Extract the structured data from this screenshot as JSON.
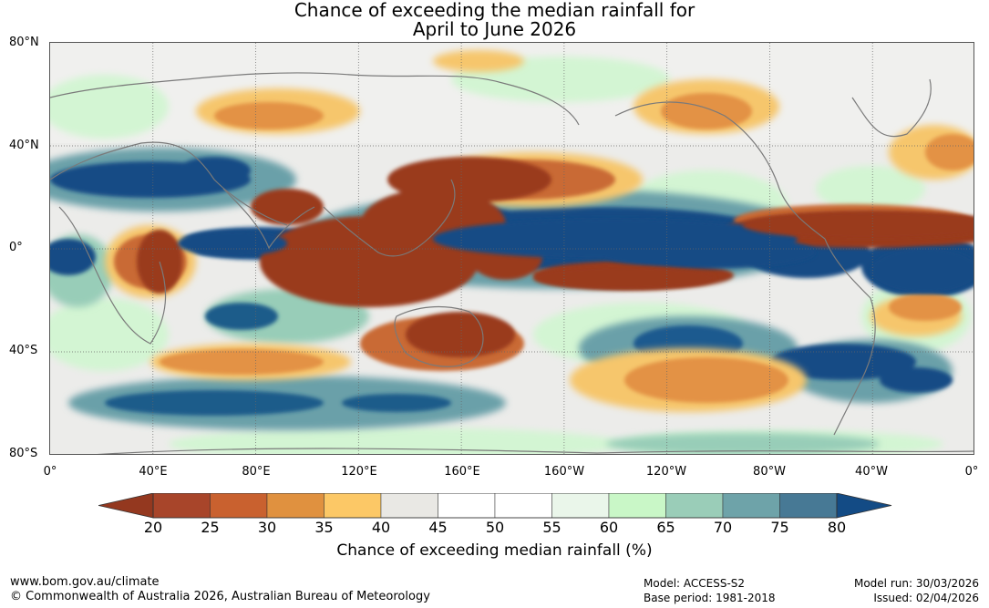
{
  "title": {
    "line1": "Chance of exceeding the median rainfall for",
    "line2": "April to June 2026"
  },
  "map": {
    "lat_labels": [
      "80°N",
      "40°N",
      "0°",
      "40°S",
      "80°S"
    ],
    "lon_labels": [
      "0°",
      "40°E",
      "80°E",
      "120°E",
      "160°E",
      "160°W",
      "120°W",
      "80°W",
      "40°W",
      "0°"
    ],
    "colors": {
      "very_dry": "#9a3a1f",
      "dry": "#c96a35",
      "moderate_dry": "#e39245",
      "light_dry": "#f6c66c",
      "neutral_grey": "#e7e6e2",
      "neutral": "#ffffff",
      "light_wet": "#d3f5d3",
      "wet": "#98cdb8",
      "moderate_wet": "#6aa0a9",
      "very_wet": "#134b85",
      "coastline": "#7a7a7a"
    }
  },
  "colorbar": {
    "ticks": [
      "20",
      "25",
      "30",
      "35",
      "40",
      "45",
      "50",
      "55",
      "60",
      "65",
      "70",
      "75",
      "80"
    ],
    "colors": [
      "#a8452a",
      "#c9612f",
      "#e0913f",
      "#fcc866",
      "#e9e8e4",
      "#ffffff",
      "#ffffff",
      "#eaf6ea",
      "#c9f7c7",
      "#9acdb8",
      "#6ea3a9",
      "#477995"
    ],
    "under_color": "#94381f",
    "over_color": "#134b85",
    "label": "Chance of exceeding median rainfall (%)"
  },
  "footer": {
    "website": "www.bom.gov.au/climate",
    "copyright": "© Commonwealth of Australia 2026, Australian Bureau of Meteorology",
    "model": "Model: ACCESS-S2",
    "base_period": "Base period: 1981-2018",
    "model_run": "Model run: 30/03/2026",
    "issued": "Issued: 02/04/2026"
  }
}
